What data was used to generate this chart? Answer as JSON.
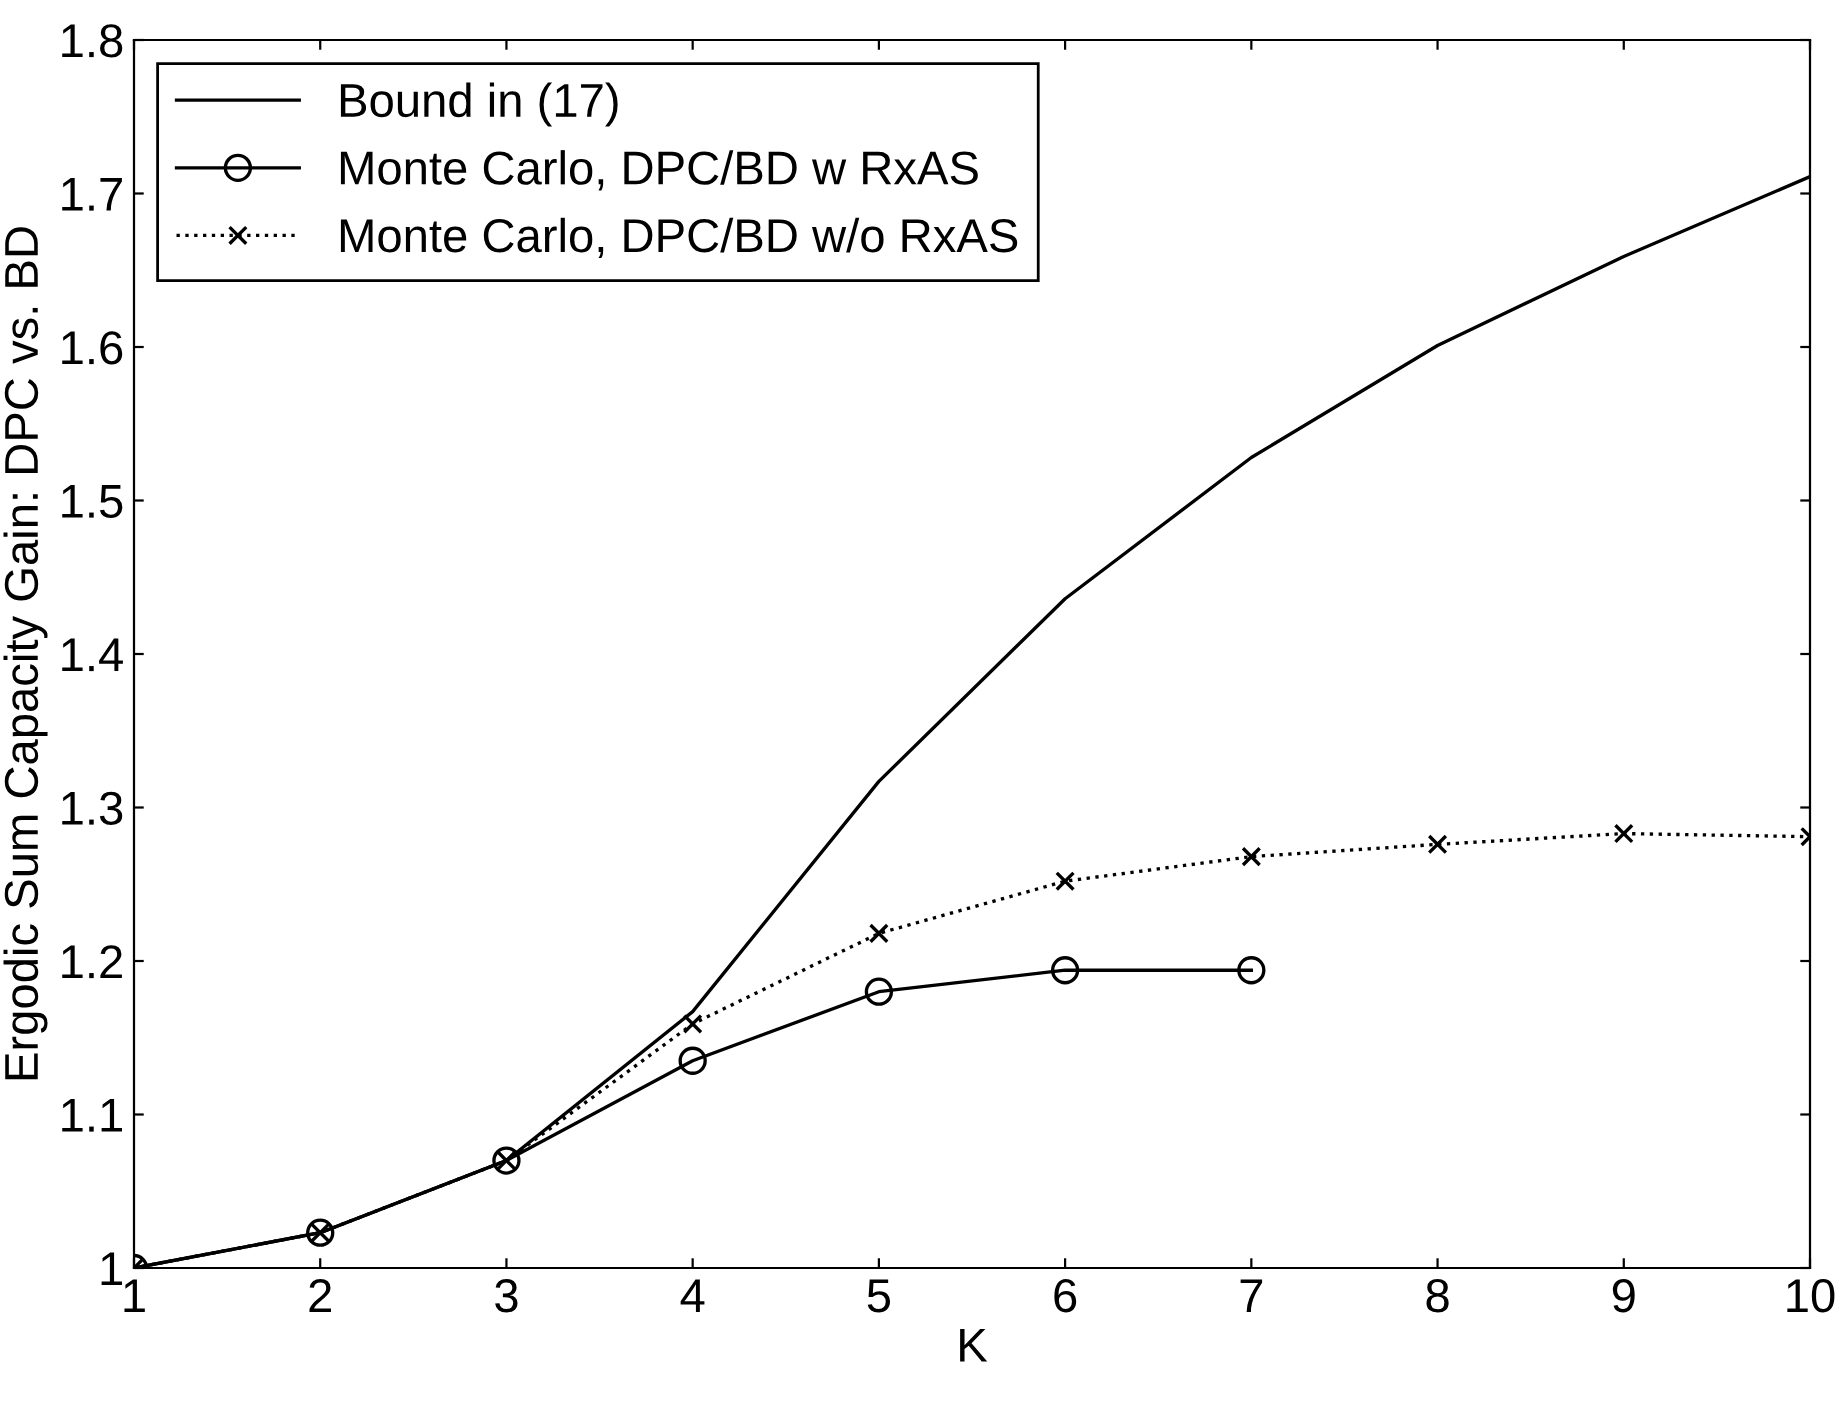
{
  "chart_data": {
    "type": "line",
    "xlabel": "K",
    "ylabel": "Ergodic Sum Capacity Gain: DPC vs. BD",
    "xlim": [
      1,
      10
    ],
    "xticks": [
      1,
      2,
      3,
      4,
      5,
      6,
      7,
      8,
      9,
      10
    ],
    "ylim": [
      1,
      1.8
    ],
    "yticks": [
      1,
      1.1,
      1.2,
      1.3,
      1.4,
      1.5,
      1.6,
      1.7,
      1.8
    ],
    "grid": false,
    "legend": "top left",
    "series": [
      {
        "name": "Bound in (17)",
        "color": "#000000",
        "marker": "none",
        "line_style": "solid",
        "x": [
          1,
          2,
          3,
          4,
          5,
          6,
          7,
          8,
          9,
          10
        ],
        "values": [
          1.0,
          1.023,
          1.07,
          1.167,
          1.317,
          1.436,
          1.528,
          1.601,
          1.659,
          1.711
        ]
      },
      {
        "name": "Monte Carlo, DPC/BD w RxAS",
        "color": "#000000",
        "marker": "circle",
        "line_style": "solid",
        "x": [
          1,
          2,
          3,
          4,
          5,
          6,
          7
        ],
        "values": [
          1.0,
          1.023,
          1.07,
          1.135,
          1.18,
          1.194,
          1.194
        ]
      },
      {
        "name": "Monte Carlo, DPC/BD w/o RxAS",
        "color": "#000000",
        "marker": "cross",
        "line_style": "dotted",
        "x": [
          1,
          2,
          3,
          4,
          5,
          6,
          7,
          8,
          9,
          10
        ],
        "values": [
          1.0,
          1.023,
          1.07,
          1.159,
          1.218,
          1.252,
          1.268,
          1.276,
          1.283,
          1.281
        ]
      }
    ]
  }
}
